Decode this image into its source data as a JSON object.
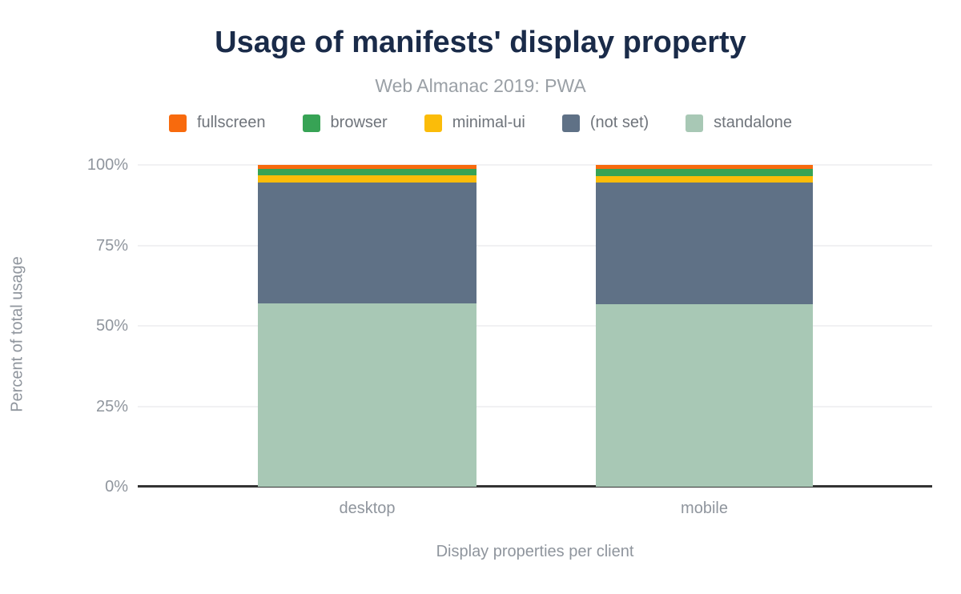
{
  "title": "Usage of manifests' display property",
  "subtitle": "Web Almanac 2019: PWA",
  "chart_data": {
    "type": "bar",
    "stacked": true,
    "categories": [
      "desktop",
      "mobile"
    ],
    "series": [
      {
        "name": "fullscreen",
        "color": "#f86a0d",
        "values": [
          1.3,
          1.2
        ]
      },
      {
        "name": "browser",
        "color": "#37a355",
        "values": [
          2.0,
          2.2
        ]
      },
      {
        "name": "minimal-ui",
        "color": "#fbbc09",
        "values": [
          2.2,
          2.0
        ]
      },
      {
        "name": "(not set)",
        "color": "#5f7186",
        "values": [
          37.5,
          37.8
        ]
      },
      {
        "name": "standalone",
        "color": "#a8c8b5",
        "values": [
          57.0,
          56.8
        ]
      }
    ],
    "title": "Usage of manifests' display property",
    "subtitle": "Web Almanac 2019: PWA",
    "xlabel": "Display properties per client",
    "ylabel": "Percent of total usage",
    "yticks": [
      "0%",
      "25%",
      "50%",
      "75%",
      "100%"
    ],
    "ytick_values": [
      0,
      25,
      50,
      75,
      100
    ],
    "ylim": [
      0,
      100
    ],
    "grid": true,
    "legend_position": "top",
    "gridline_color": "#f1f1f3",
    "axis_line_color": "#333333",
    "title_color": "#1a2b49"
  }
}
